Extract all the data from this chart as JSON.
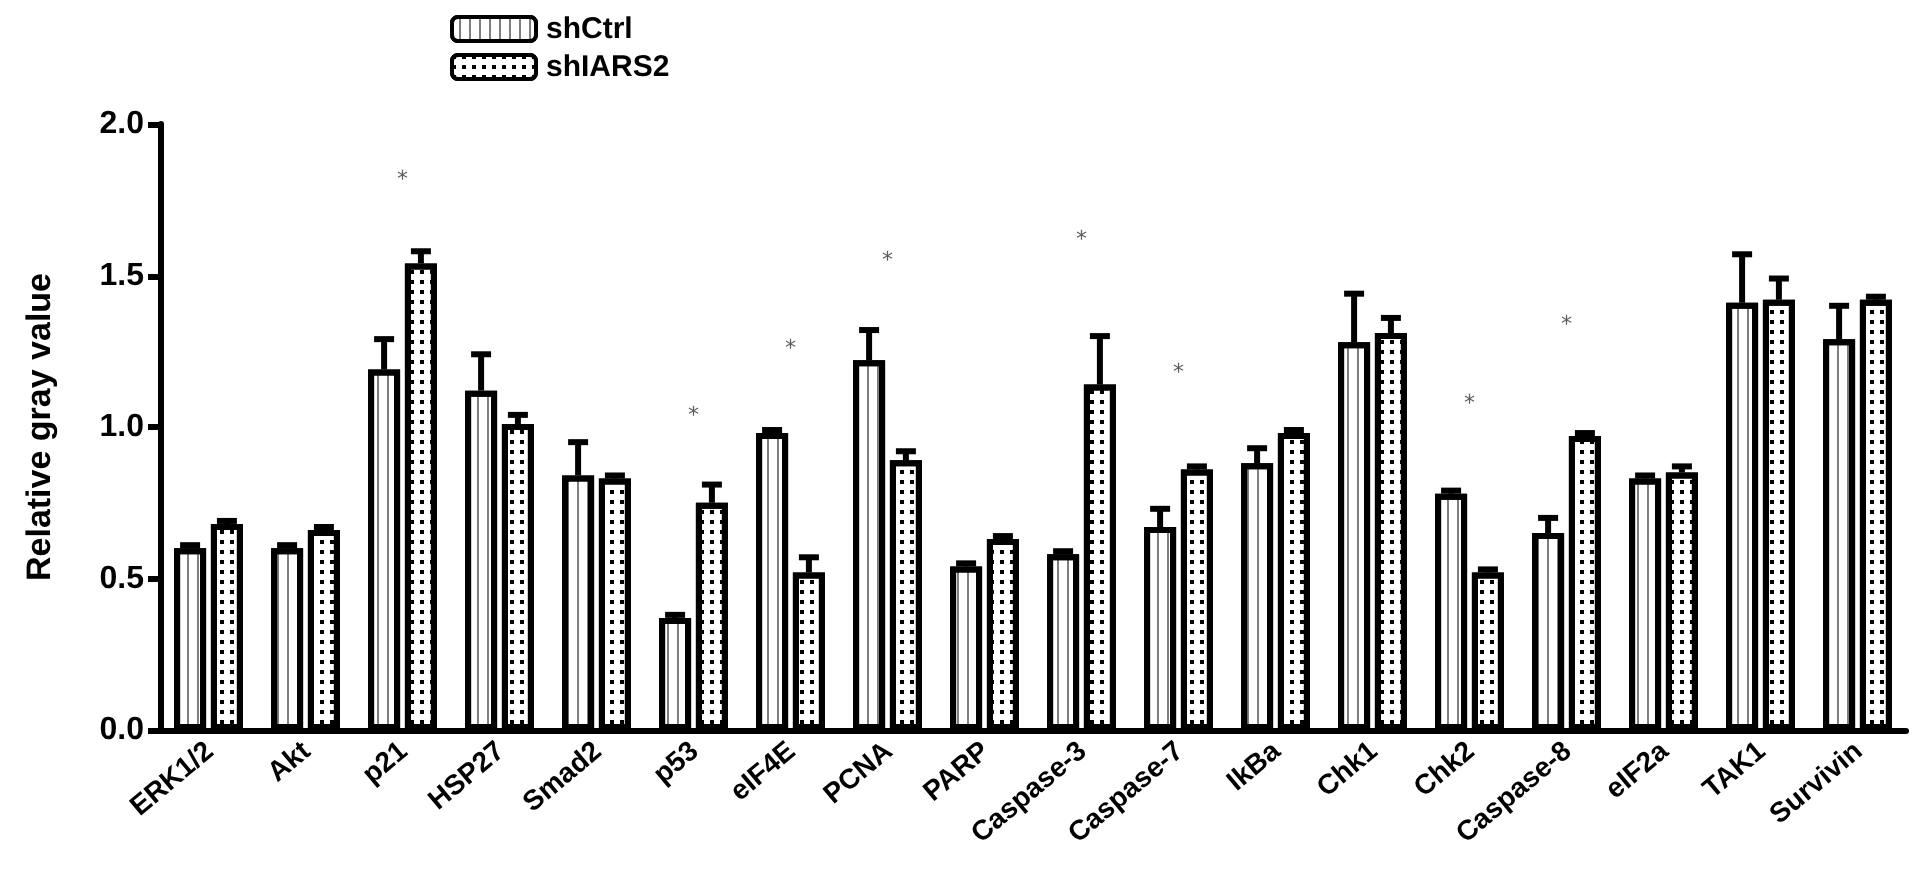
{
  "chart_data": {
    "type": "bar",
    "ylabel": "Relative gray value",
    "categories": [
      "ERK1/2",
      "Akt",
      "p21",
      "HSP27",
      "Smad2",
      "p53",
      "eIF4E",
      "PCNA",
      "PARP",
      "Caspase-3",
      "Caspase-7",
      "IkBa",
      "Chk1",
      "Chk2",
      "Caspase-8",
      "eIF2a",
      "TAK1",
      "Survivin"
    ],
    "series": [
      {
        "name": "shCtrl",
        "color": "#ffffff",
        "values": [
          0.6,
          0.6,
          1.19,
          1.12,
          0.84,
          0.37,
          0.98,
          1.22,
          0.54,
          0.58,
          0.67,
          0.88,
          1.28,
          0.78,
          0.65,
          0.83,
          1.41,
          1.29
        ],
        "errors": [
          [
            0.6,
            0.61
          ],
          [
            0.6,
            0.61
          ],
          [
            1.19,
            1.29
          ],
          [
            1.12,
            1.24
          ],
          [
            0.84,
            0.95
          ],
          [
            0.37,
            0.38
          ],
          [
            0.98,
            0.99
          ],
          [
            1.22,
            1.32
          ],
          [
            0.54,
            0.55
          ],
          [
            0.58,
            0.59
          ],
          [
            0.67,
            0.73
          ],
          [
            0.88,
            0.93
          ],
          [
            1.28,
            1.44
          ],
          [
            0.78,
            0.79
          ],
          [
            0.65,
            0.7
          ],
          [
            0.83,
            0.84
          ],
          [
            1.41,
            1.57
          ],
          [
            1.29,
            1.4
          ]
        ]
      },
      {
        "name": "shIARS2",
        "color": "#ffffff",
        "values": [
          0.68,
          0.66,
          1.54,
          1.01,
          0.83,
          0.75,
          0.52,
          0.89,
          0.63,
          1.14,
          0.86,
          0.98,
          1.31,
          0.52,
          0.97,
          0.85,
          1.42,
          1.42
        ],
        "errors": [
          [
            0.68,
            0.69
          ],
          [
            0.66,
            0.67
          ],
          [
            1.54,
            1.58
          ],
          [
            1.01,
            1.04
          ],
          [
            0.83,
            0.84
          ],
          [
            0.75,
            0.81
          ],
          [
            0.52,
            0.57
          ],
          [
            0.89,
            0.92
          ],
          [
            0.63,
            0.64
          ],
          [
            1.14,
            1.3
          ],
          [
            0.86,
            0.87
          ],
          [
            0.98,
            0.99
          ],
          [
            1.31,
            1.36
          ],
          [
            0.52,
            0.53
          ],
          [
            0.97,
            0.98
          ],
          [
            0.85,
            0.87
          ],
          [
            1.42,
            1.49
          ],
          [
            1.42,
            1.43
          ]
        ]
      }
    ],
    "annotations": [
      "*",
      "*",
      "*",
      "*",
      "*",
      "*",
      "*",
      "*"
    ],
    "ylim": [
      0,
      2
    ],
    "yticks": [
      {
        "value": 0,
        "label": "0.0"
      },
      0.5,
      {
        "value": 1,
        "label": "1.0"
      },
      1.5,
      {
        "value": 2,
        "label": "2.0"
      }
    ],
    "grid": false,
    "legend": "top"
  }
}
